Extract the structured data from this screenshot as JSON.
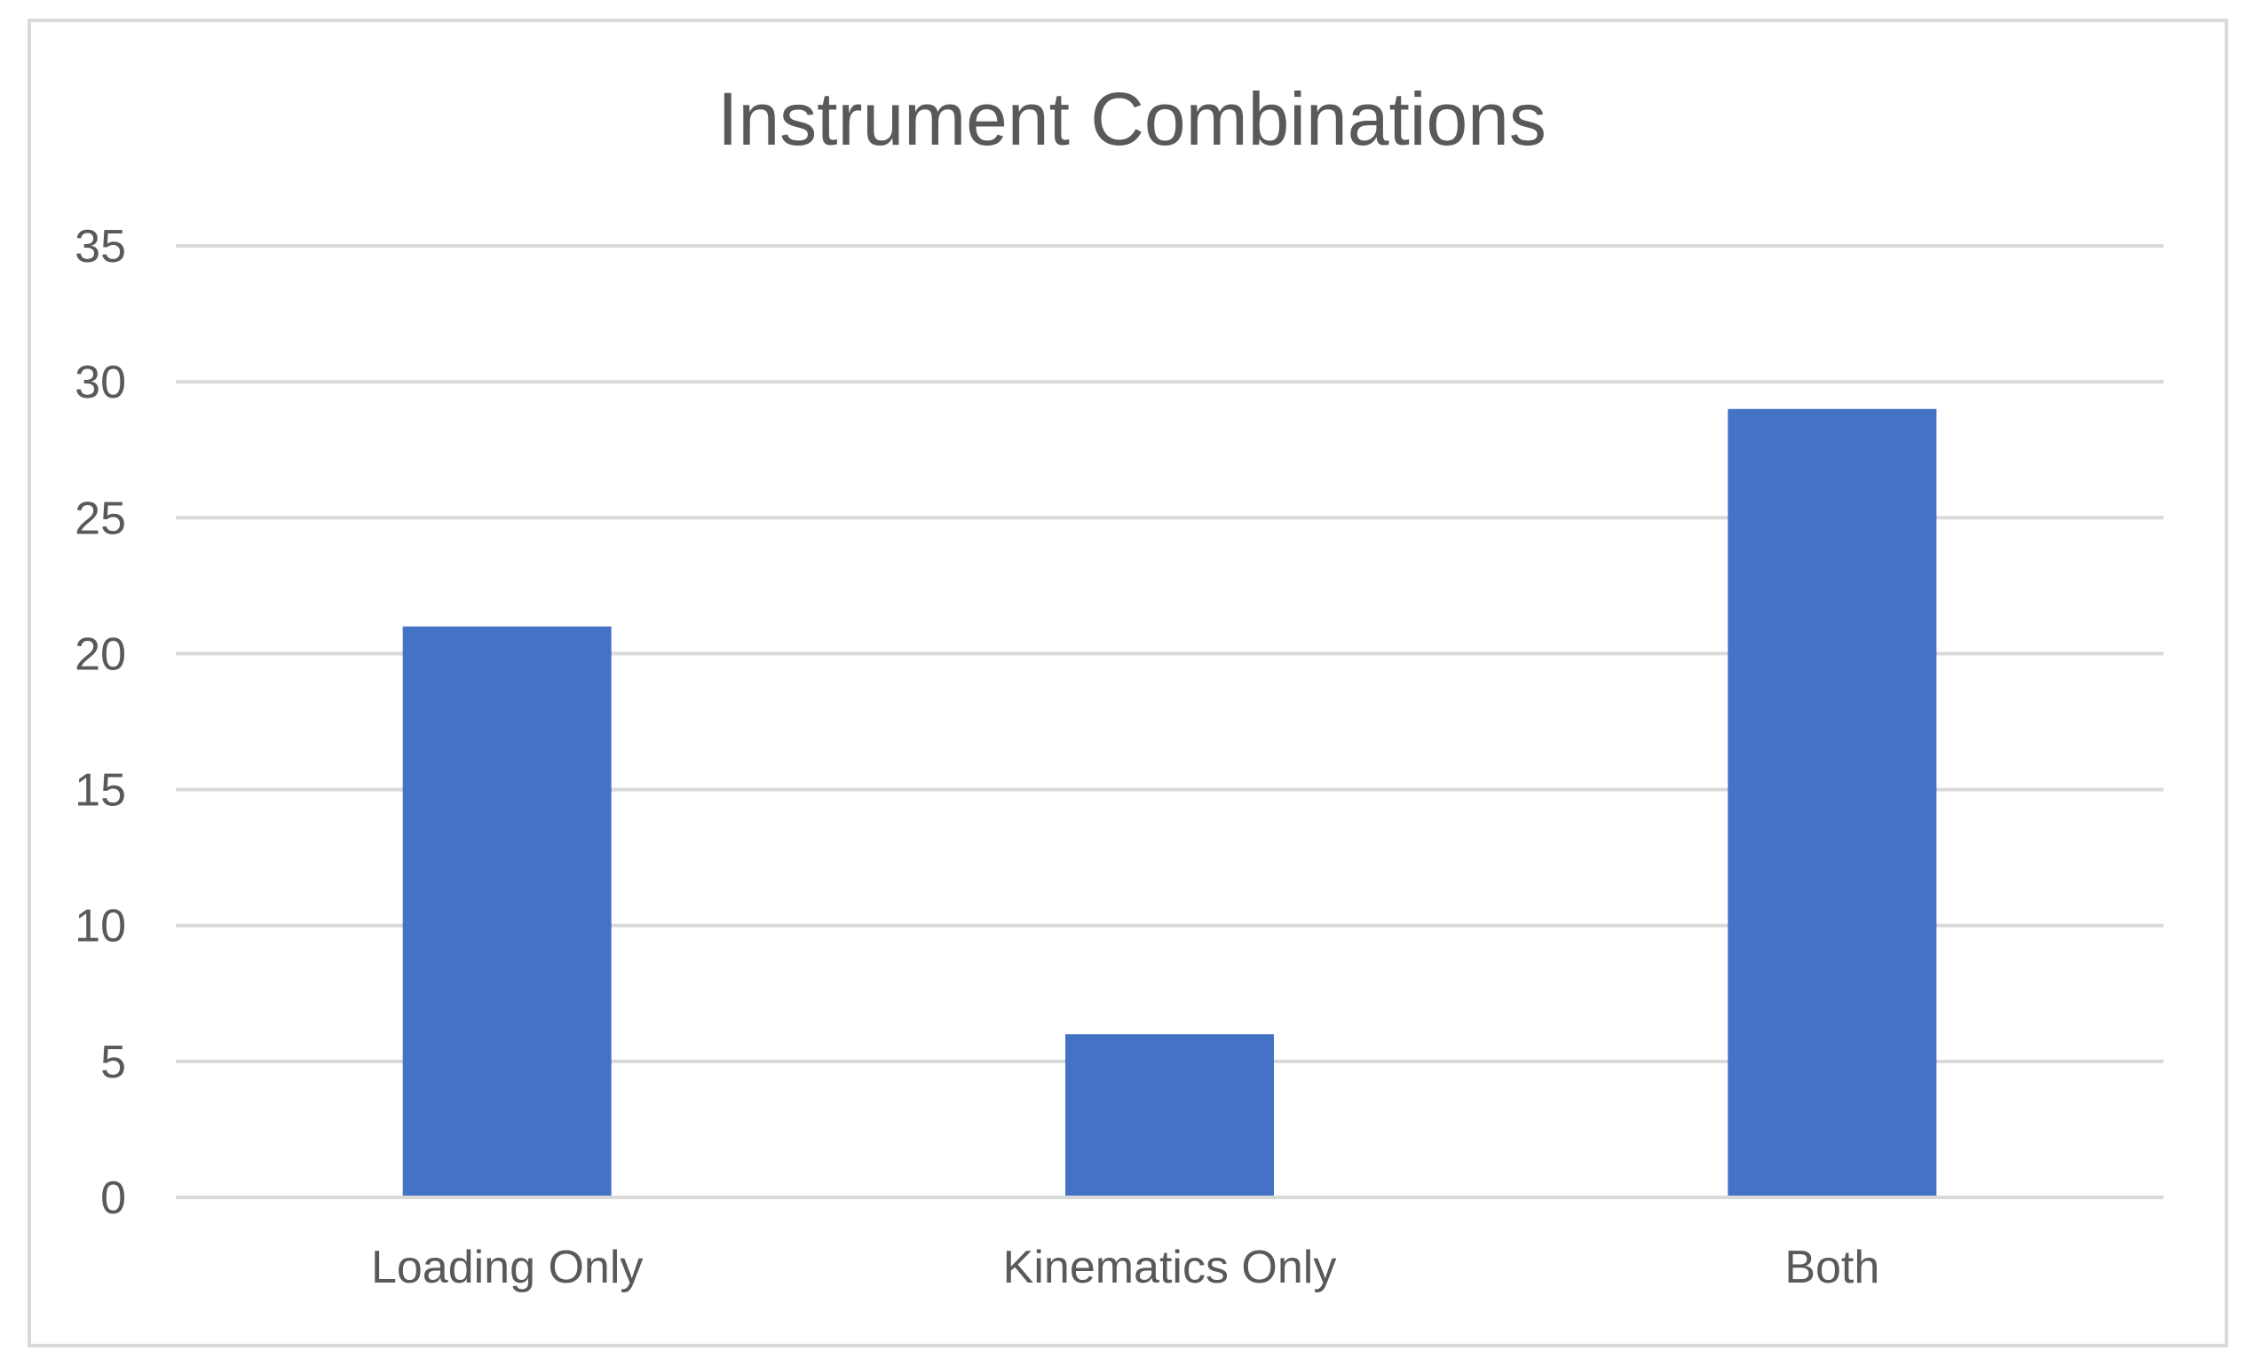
{
  "chart_data": {
    "type": "bar",
    "title": "Instrument Combinations",
    "xlabel": "",
    "ylabel": "",
    "categories": [
      "Loading Only",
      "Kinematics Only",
      "Both"
    ],
    "values": [
      21,
      6,
      29
    ],
    "ylim": [
      0,
      35
    ],
    "yticks": [
      0,
      5,
      10,
      15,
      20,
      25,
      30,
      35
    ],
    "grid": true,
    "legend": "none",
    "colors": {
      "bar": "#4472C4",
      "gridline": "#D9D9D9",
      "text": "#595959",
      "frame": "#D9D9D9"
    }
  }
}
